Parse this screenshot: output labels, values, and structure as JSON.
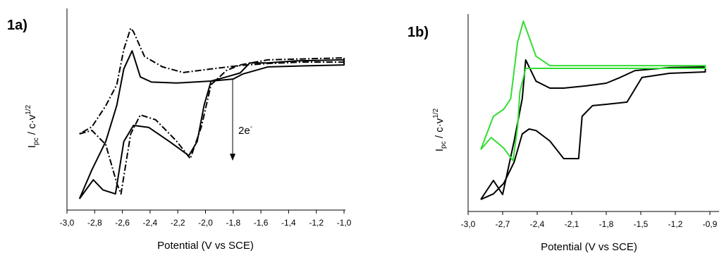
{
  "chart_data": [
    {
      "type": "line",
      "panel_label": "1a)",
      "x_label": "Potential (V vs SCE)",
      "y_label": {
        "main": "I",
        "sub": "pc",
        "rest": " / c·v",
        "sup": "1/2"
      },
      "annotation": {
        "text": "2e",
        "sup": "-"
      },
      "xlim": [
        -3.0,
        -1.0
      ],
      "ylim": [
        0,
        100
      ],
      "xticks": [
        {
          "value": -3.0,
          "label": "-3,0"
        },
        {
          "value": -2.8,
          "label": "-2,8"
        },
        {
          "value": -2.6,
          "label": "-2,6"
        },
        {
          "value": -2.4,
          "label": "-2,4"
        },
        {
          "value": -2.2,
          "label": "-2,2"
        },
        {
          "value": -2.0,
          "label": "-2,0"
        },
        {
          "value": -1.8,
          "label": "-1,8"
        },
        {
          "value": -1.6,
          "label": "-1,6"
        },
        {
          "value": -1.4,
          "label": "-1,4"
        },
        {
          "value": -1.2,
          "label": "-1,2"
        },
        {
          "value": -1.0,
          "label": "-1,0"
        }
      ],
      "series": [
        {
          "color": "#000000",
          "style": "solid",
          "x": [
            -2.91,
            -2.81,
            -2.74,
            -2.65,
            -2.59,
            -2.52,
            -2.41,
            -2.26,
            -2.12,
            -2.06,
            -2.01,
            -1.96,
            -1.85,
            -1.75,
            -1.68,
            -1.55,
            -1.35,
            -1.0,
            -1.0,
            -1.3,
            -1.55,
            -1.73,
            -1.8,
            -1.96,
            -2.21,
            -2.39,
            -2.47,
            -2.53,
            -2.59,
            -2.64,
            -2.72,
            -2.82,
            -2.91
          ],
          "values": [
            5.6,
            15,
            10,
            8,
            34,
            42,
            41,
            34,
            27,
            34,
            52,
            64,
            66,
            68,
            73,
            73,
            74,
            74.5,
            72,
            71.5,
            71,
            67.5,
            65,
            64,
            63,
            63.5,
            66,
            79,
            70,
            52,
            34,
            20,
            5.6
          ]
        },
        {
          "color": "#000000",
          "style": "dashdot",
          "x": [
            -2.91,
            -2.82,
            -2.72,
            -2.64,
            -2.61,
            -2.54,
            -2.47,
            -2.36,
            -2.21,
            -2.11,
            -2.03,
            -1.96,
            -1.85,
            -1.75,
            -1.55,
            -1.0,
            -1.0,
            -1.3,
            -1.55,
            -1.75,
            -1.96,
            -2.16,
            -2.31,
            -2.44,
            -2.52,
            -2.54,
            -2.59,
            -2.64,
            -2.72,
            -2.82,
            -2.91
          ],
          "values": [
            37.8,
            39.5,
            32.5,
            13.3,
            8,
            37.8,
            47.2,
            44.8,
            34.3,
            25.5,
            41.3,
            62.2,
            69.2,
            72,
            74.5,
            75.5,
            73.4,
            73.4,
            72.7,
            71.7,
            70,
            68.2,
            71,
            76.2,
            88.5,
            90.2,
            79.7,
            62.2,
            51.7,
            41.3,
            37.8
          ]
        }
      ]
    },
    {
      "type": "line",
      "panel_label": "1b)",
      "x_label": "Potential (V vs SCE)",
      "y_label": {
        "main": "I",
        "sub": "pc",
        "rest": " / c·v",
        "sup": "1/2"
      },
      "xlim": [
        -3.0,
        -0.9
      ],
      "ylim": [
        0,
        100
      ],
      "xticks": [
        {
          "value": -3.0,
          "label": "-3,0"
        },
        {
          "value": -2.7,
          "label": "-2,7"
        },
        {
          "value": -2.4,
          "label": "-2,4"
        },
        {
          "value": -2.1,
          "label": "-2,1"
        },
        {
          "value": -1.8,
          "label": "-1,8"
        },
        {
          "value": -1.5,
          "label": "-1,5"
        },
        {
          "value": -1.2,
          "label": "-1,2"
        },
        {
          "value": -0.9,
          "label": "-0,9"
        }
      ],
      "series": [
        {
          "color": "#000000",
          "style": "solid",
          "x": [
            -2.89,
            -2.78,
            -2.7,
            -2.6,
            -2.53,
            -2.5,
            -2.41,
            -2.29,
            -2.17,
            -1.98,
            -1.89,
            -1.8,
            -1.68,
            -1.55,
            -1.25,
            -0.94,
            -0.94,
            -1.25,
            -1.49,
            -1.62,
            -1.8,
            -1.92,
            -2.01,
            -2.04,
            -2.17,
            -2.29,
            -2.41,
            -2.47,
            -2.53,
            -2.6,
            -2.69,
            -2.78,
            -2.89
          ],
          "values": [
            6.1,
            15.7,
            8.6,
            35.7,
            57.1,
            76.8,
            66,
            62.5,
            62.5,
            63.6,
            64.3,
            65,
            67.9,
            71.4,
            72.9,
            73.2,
            70.7,
            70,
            67.9,
            55.4,
            54.3,
            53.6,
            48.2,
            26.8,
            26.8,
            35.7,
            41,
            41.8,
            39.3,
            25,
            14.3,
            8.9,
            6.1
          ]
        },
        {
          "color": "#33dd33",
          "style": "solid",
          "x": [
            -2.89,
            -2.8,
            -2.69,
            -2.61,
            -2.57,
            -2.55,
            -2.5,
            -2.29,
            -1.8,
            -0.94,
            -0.94,
            -1.8,
            -2.29,
            -2.41,
            -2.52,
            -2.57,
            -2.63,
            -2.69,
            -2.78,
            -2.89
          ],
          "values": [
            31.4,
            37.5,
            32.1,
            25.7,
            42.9,
            60.7,
            72.5,
            72.5,
            72.5,
            72.5,
            73.9,
            73.9,
            73.9,
            78.6,
            96.4,
            85.7,
            57.1,
            51.8,
            48.2,
            31.4
          ]
        }
      ]
    }
  ]
}
